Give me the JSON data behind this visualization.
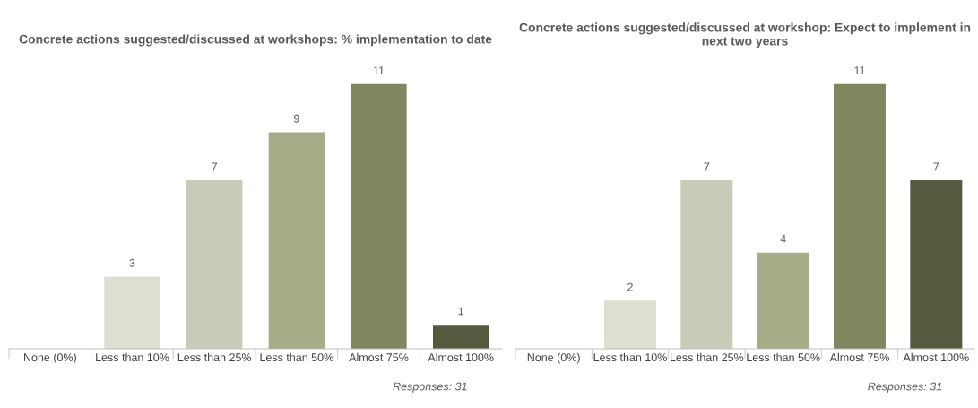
{
  "chart_data": [
    {
      "type": "bar",
      "title": "Concrete actions suggested/discussed at workshops: % implementation to date",
      "categories": [
        "None (0%)",
        "Less than 10%",
        "Less than 25%",
        "Less than 50%",
        "Almost 75%",
        "Almost 100%"
      ],
      "values": [
        0,
        3,
        7,
        9,
        11,
        1
      ],
      "value_labels": [
        null,
        "3",
        "7",
        "9",
        "11",
        "1"
      ],
      "colors": [
        "#dcdfd2",
        "#dcdfd2",
        "#c8cbb8",
        "#a6ac88",
        "#7f8760",
        "#535a3e"
      ],
      "tick_labels": "x",
      "grid": false,
      "legend": false,
      "annotations": [
        "Responses: 31"
      ]
    },
    {
      "type": "bar",
      "title": "Concrete actions suggested/discussed at workshop: Expect to implement in next two years",
      "categories": [
        "None (0%)",
        "Less than 10%",
        "Less than 25%",
        "Less than 50%",
        "Almost 75%",
        "Almost 100%"
      ],
      "values": [
        0,
        2,
        7,
        4,
        11,
        7
      ],
      "value_labels": [
        null,
        "2",
        "7",
        "4",
        "11",
        "7"
      ],
      "colors": [
        "#dcdfd2",
        "#dcdfd2",
        "#c8cbb8",
        "#a6ac88",
        "#7f8760",
        "#535a3e"
      ],
      "tick_labels": "x",
      "grid": false,
      "legend": false,
      "annotations": [
        "Responses: 31"
      ]
    }
  ]
}
